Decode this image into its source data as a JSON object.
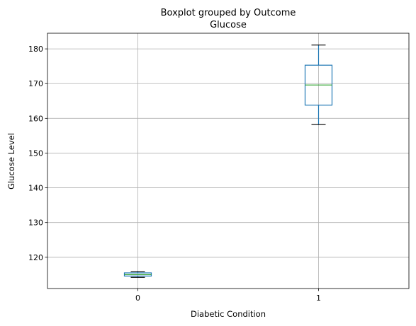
{
  "chart_data": {
    "type": "boxplot",
    "suptitle": "Boxplot grouped by Outcome",
    "title": "Glucose",
    "xlabel": "Diabetic Condition",
    "ylabel": "Glucose Level",
    "categories": [
      "0",
      "1"
    ],
    "ylim": [
      111,
      184.5
    ],
    "yticks": [
      120,
      130,
      140,
      150,
      160,
      170,
      180
    ],
    "grid": true,
    "boxes": [
      {
        "category": "0",
        "whisker_low": 114.2,
        "q1": 114.6,
        "median": 115.0,
        "q3": 115.5,
        "whisker_high": 115.9
      },
      {
        "category": "1",
        "whisker_low": 158.2,
        "q1": 163.8,
        "median": 169.6,
        "q3": 175.3,
        "whisker_high": 181.1
      }
    ],
    "colors": {
      "box": "#1f77b4",
      "median": "#2ca02c",
      "whisker": "#1f77b4",
      "cap": "#000000",
      "grid": "#b0b0b0"
    }
  }
}
